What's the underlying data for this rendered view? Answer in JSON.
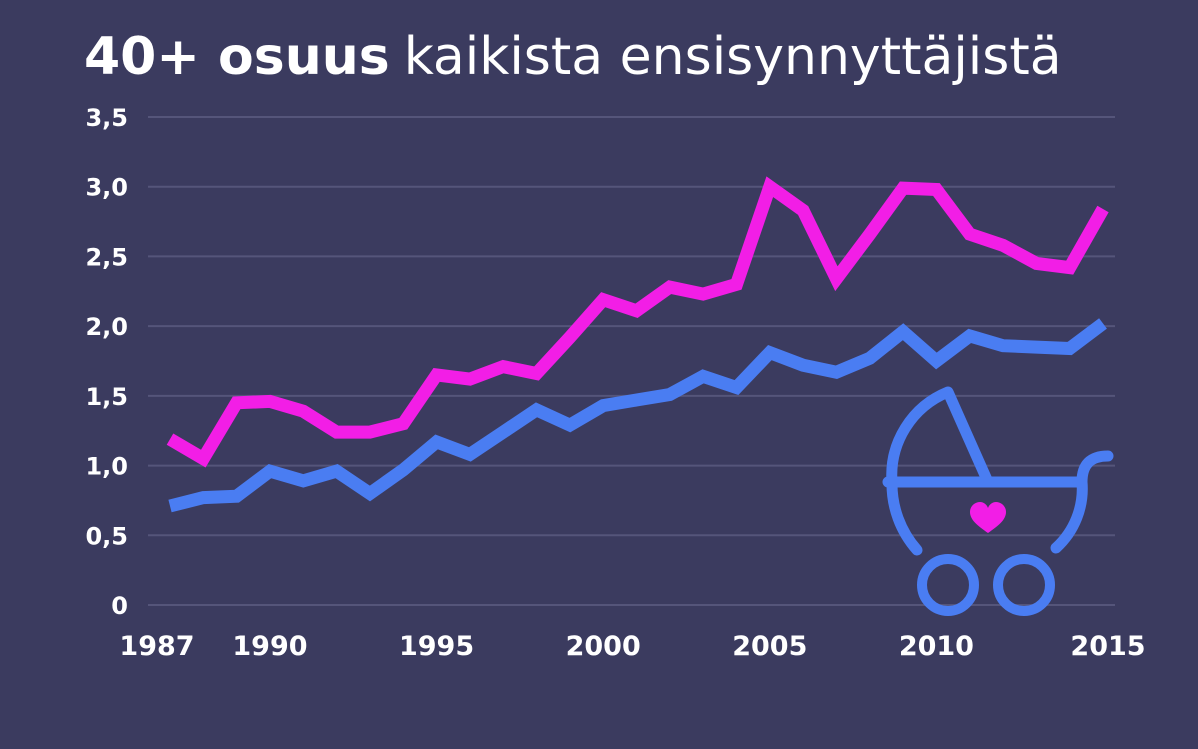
{
  "title": {
    "bold": "40+ osuus",
    "light": "kaikista ensisynnyttäjistä"
  },
  "colors": {
    "background": "#3b3b5f",
    "grid": "#55557a",
    "series_magenta": "#f21ee6",
    "series_blue": "#4a7df2",
    "stroller": "#4a7df2",
    "heart": "#f21ee6"
  },
  "icons": [
    "baby-stroller-icon",
    "heart-icon"
  ],
  "chart_data": {
    "type": "line",
    "title": "40+ osuus kaikista ensisynnyttäjistä",
    "xlabel": "",
    "ylabel": "",
    "ylim": [
      0,
      3.5
    ],
    "xlim": [
      1987,
      2015
    ],
    "grid": true,
    "yticks": [
      {
        "value": 0,
        "label": "0"
      },
      {
        "value": 0.5,
        "label": "0,5"
      },
      {
        "value": 1.0,
        "label": "1,0"
      },
      {
        "value": 1.5,
        "label": "1,5"
      },
      {
        "value": 2.0,
        "label": "2,0"
      },
      {
        "value": 2.5,
        "label": "2,5"
      },
      {
        "value": 3.0,
        "label": "3,0"
      },
      {
        "value": 3.5,
        "label": "3,5"
      }
    ],
    "xticks": [
      {
        "value": 1987,
        "label": "1987"
      },
      {
        "value": 1990,
        "label": "1990"
      },
      {
        "value": 1995,
        "label": "1995"
      },
      {
        "value": 2000,
        "label": "2000"
      },
      {
        "value": 2005,
        "label": "2005"
      },
      {
        "value": 2010,
        "label": "2010"
      },
      {
        "value": 2015,
        "label": "2015"
      }
    ],
    "x": [
      1987,
      1988,
      1989,
      1990,
      1991,
      1992,
      1993,
      1994,
      1995,
      1996,
      1997,
      1998,
      1999,
      2000,
      2001,
      2002,
      2003,
      2004,
      2005,
      2006,
      2007,
      2008,
      2009,
      2010,
      2011,
      2012,
      2013,
      2014,
      2015
    ],
    "series": [
      {
        "color": "#f21ee6",
        "values": [
          1.19,
          1.05,
          1.45,
          1.46,
          1.39,
          1.24,
          1.24,
          1.3,
          1.65,
          1.62,
          1.71,
          1.66,
          1.92,
          2.19,
          2.11,
          2.28,
          2.23,
          2.3,
          3.0,
          2.83,
          2.34,
          2.66,
          2.99,
          2.98,
          2.66,
          2.58,
          2.45,
          2.42,
          2.84
        ]
      },
      {
        "color": "#4a7df2",
        "values": [
          0.71,
          0.77,
          0.78,
          0.96,
          0.89,
          0.96,
          0.8,
          0.97,
          1.17,
          1.08,
          1.24,
          1.4,
          1.29,
          1.43,
          1.47,
          1.51,
          1.64,
          1.56,
          1.81,
          1.72,
          1.67,
          1.77,
          1.96,
          1.75,
          1.93,
          1.86,
          1.85,
          1.84,
          2.02
        ]
      }
    ]
  }
}
